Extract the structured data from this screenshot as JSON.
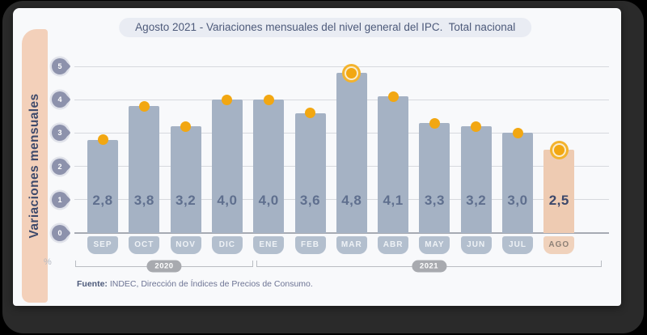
{
  "title_pill": {
    "text": "Agosto 2021 - Variaciones mensuales del nivel general del IPC.  Total nacional"
  },
  "axis_label": {
    "text": "Variaciones mensuales"
  },
  "percent_label": "%",
  "source": {
    "prefix": "Fuente:",
    "rest": " INDEC, Dirección de Índices de Precios de Consumo."
  },
  "chart_data": {
    "type": "bar",
    "title": "Agosto 2021 - Variaciones mensuales del nivel general del IPC. Total nacional",
    "ylabel": "Variaciones mensuales",
    "unit": "%",
    "categories": [
      "SEP",
      "OCT",
      "NOV",
      "DIC",
      "ENE",
      "FEB",
      "MAR",
      "ABR",
      "MAY",
      "JUN",
      "JUL",
      "AGO"
    ],
    "values": [
      2.8,
      3.8,
      3.2,
      4.0,
      4.0,
      3.6,
      4.8,
      4.1,
      3.3,
      3.2,
      3.0,
      2.5
    ],
    "value_labels": [
      "2,8",
      "3,8",
      "3,2",
      "4,0",
      "4,0",
      "3,6",
      "4,8",
      "4,1",
      "3,3",
      "3,2",
      "3,0",
      "2,5"
    ],
    "yticks": [
      5,
      4,
      3,
      2,
      1,
      0
    ],
    "ylim": [
      0,
      5
    ],
    "grid": true,
    "marker": "orange-dot-on-bar-top",
    "ringed_dot_categories": [
      "MAR",
      "AGO"
    ],
    "highlight_category": "AGO",
    "year_groups": [
      {
        "label": "2020",
        "from": "SEP",
        "to": "DIC",
        "span": 4
      },
      {
        "label": "2021",
        "from": "ENE",
        "to": "AGO",
        "span": 8
      }
    ],
    "source": "Fuente: INDEC, Dirección de Índices de Precios de Consumo.",
    "colors": {
      "bar": "#a5b2c4",
      "bar_highlight": "#eecbb2",
      "month_pill": "#b3bfce",
      "month_pill_highlight": "#f0d2bc",
      "dot": "#f2a712",
      "value_label": "#5f6f8e",
      "value_label_highlight": "#3c486b",
      "accent_strip": "#f3d0ba",
      "grid": "#d7d9de",
      "axis": "#a7abb3",
      "tick_marker": "#8d92ac",
      "title_pill_bg": "#e9ecf3",
      "title_text": "#4d5a7a"
    }
  }
}
